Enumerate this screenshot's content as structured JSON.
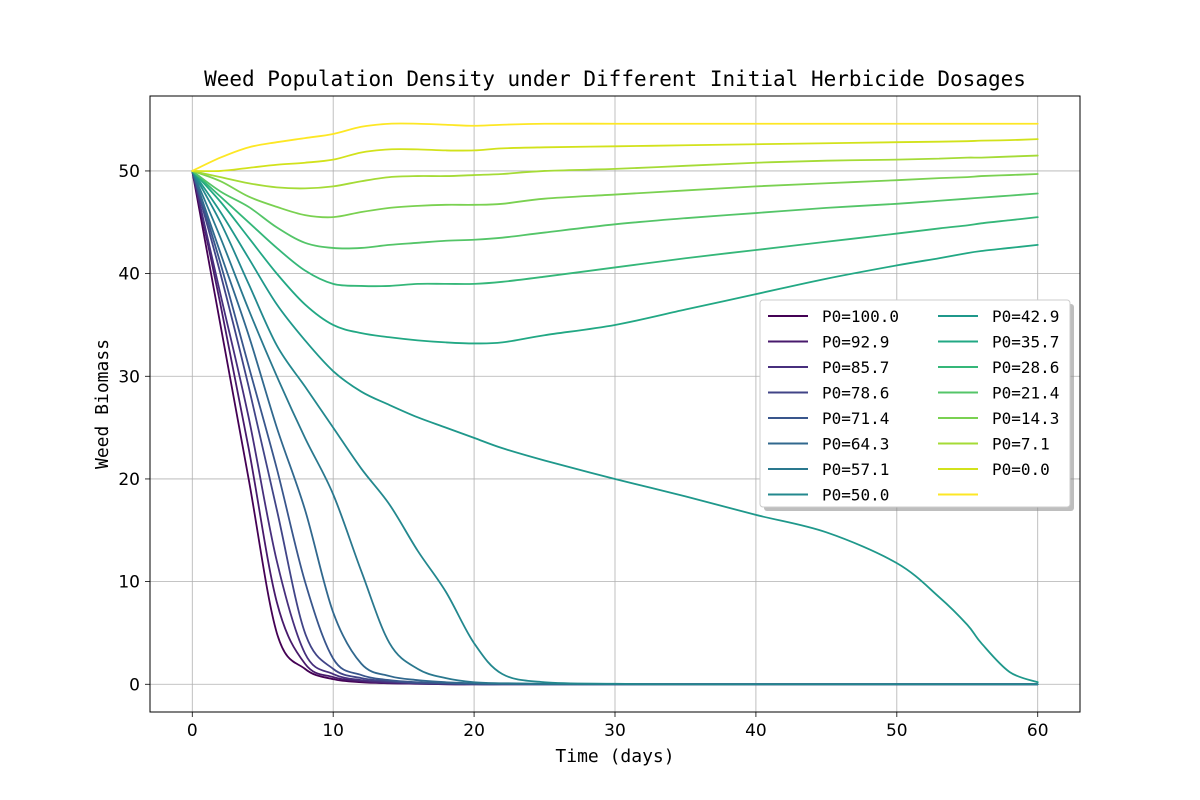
{
  "chart_data": {
    "type": "line",
    "title": "Weed Population Density under Different Initial Herbicide Dosages",
    "xlabel": "Time (days)",
    "ylabel": "Weed Biomass",
    "xlim": [
      -3,
      63
    ],
    "ylim": [
      -2.7,
      57.3
    ],
    "xticks": [
      0,
      10,
      20,
      30,
      40,
      50,
      60
    ],
    "yticks": [
      0,
      10,
      20,
      30,
      40,
      50
    ],
    "grid": true,
    "legend": {
      "placement": "center-right",
      "columns": 2
    },
    "x": [
      0,
      2,
      4,
      6,
      8,
      10,
      12,
      14,
      16,
      18,
      20,
      22,
      25,
      30,
      35,
      40,
      45,
      50,
      53,
      55,
      56,
      58,
      60
    ],
    "series": [
      {
        "name": "P0=100.0",
        "color": "#440154",
        "values": [
          50,
          35,
          20,
          5,
          1.5,
          0.5,
          0.2,
          0.1,
          0.05,
          0,
          0,
          0,
          0,
          0,
          0,
          0,
          0,
          0,
          0,
          0,
          0,
          0,
          0
        ]
      },
      {
        "name": "P0=92.9",
        "color": "#481a6c",
        "values": [
          50,
          37,
          23,
          8,
          2,
          0.7,
          0.3,
          0.1,
          0.05,
          0,
          0,
          0,
          0,
          0,
          0,
          0,
          0,
          0,
          0,
          0,
          0,
          0,
          0
        ]
      },
      {
        "name": "P0=85.7",
        "color": "#472f7d",
        "values": [
          50,
          38,
          26,
          12,
          3,
          1,
          0.4,
          0.2,
          0.1,
          0.05,
          0,
          0,
          0,
          0,
          0,
          0,
          0,
          0,
          0,
          0,
          0,
          0,
          0
        ]
      },
      {
        "name": "P0=78.6",
        "color": "#414487",
        "values": [
          50,
          40,
          29,
          17,
          5,
          1.5,
          0.6,
          0.3,
          0.1,
          0.05,
          0,
          0,
          0,
          0,
          0,
          0,
          0,
          0,
          0,
          0,
          0,
          0,
          0
        ]
      },
      {
        "name": "P0=71.4",
        "color": "#39568c",
        "values": [
          50,
          41,
          31,
          21,
          10,
          2.5,
          0.9,
          0.4,
          0.2,
          0.1,
          0.05,
          0,
          0,
          0,
          0,
          0,
          0,
          0,
          0,
          0,
          0,
          0,
          0
        ]
      },
      {
        "name": "P0=64.3",
        "color": "#31688e",
        "values": [
          50,
          42,
          34,
          25,
          17,
          7,
          2,
          0.8,
          0.4,
          0.2,
          0.1,
          0.05,
          0,
          0,
          0,
          0,
          0,
          0,
          0,
          0,
          0,
          0,
          0
        ]
      },
      {
        "name": "P0=57.1",
        "color": "#2a788e",
        "values": [
          50,
          43.5,
          36.5,
          30,
          24,
          18.5,
          11,
          4,
          1.5,
          0.6,
          0.2,
          0.1,
          0.05,
          0,
          0,
          0,
          0,
          0,
          0,
          0,
          0,
          0,
          0
        ]
      },
      {
        "name": "P0=50.0",
        "color": "#23888e",
        "values": [
          50,
          45,
          39,
          33,
          29,
          25,
          21,
          17.5,
          13,
          9,
          4,
          1,
          0.2,
          0.05,
          0,
          0,
          0,
          0,
          0,
          0,
          0,
          0,
          0
        ]
      },
      {
        "name": "P0=42.9",
        "color": "#1f988b",
        "values": [
          50,
          46,
          41.5,
          37,
          33.5,
          30.5,
          28.5,
          27.2,
          26,
          25,
          24,
          23,
          21.8,
          20,
          18.3,
          16.5,
          14.8,
          11.8,
          8.5,
          5.8,
          4,
          1.2,
          0.2
        ]
      },
      {
        "name": "P0=35.7",
        "color": "#22a884",
        "values": [
          50,
          47,
          43.5,
          40,
          37,
          35,
          34.2,
          33.8,
          33.5,
          33.3,
          33.2,
          33.3,
          34,
          35,
          36.5,
          38,
          39.5,
          40.8,
          41.5,
          42,
          42.2,
          42.5,
          42.8
        ]
      },
      {
        "name": "P0=28.6",
        "color": "#35b779",
        "values": [
          50,
          47.5,
          45,
          42.5,
          40.3,
          39,
          38.8,
          38.8,
          39,
          39,
          39,
          39.2,
          39.7,
          40.6,
          41.5,
          42.3,
          43.1,
          43.9,
          44.4,
          44.7,
          44.9,
          45.2,
          45.5
        ]
      },
      {
        "name": "P0=21.4",
        "color": "#54c568",
        "values": [
          50,
          48,
          46.5,
          44.5,
          43,
          42.5,
          42.5,
          42.8,
          43,
          43.2,
          43.3,
          43.5,
          44,
          44.8,
          45.4,
          45.9,
          46.4,
          46.8,
          47.1,
          47.3,
          47.4,
          47.6,
          47.8
        ]
      },
      {
        "name": "P0=14.3",
        "color": "#7ad151",
        "values": [
          50,
          49,
          47.5,
          46.5,
          45.7,
          45.5,
          46,
          46.4,
          46.6,
          46.7,
          46.7,
          46.8,
          47.3,
          47.7,
          48.1,
          48.5,
          48.8,
          49.1,
          49.3,
          49.4,
          49.5,
          49.6,
          49.7
        ]
      },
      {
        "name": "P0=7.1",
        "color": "#a5db36",
        "values": [
          50,
          49.4,
          48.8,
          48.4,
          48.3,
          48.5,
          49,
          49.4,
          49.5,
          49.5,
          49.6,
          49.7,
          50,
          50.2,
          50.5,
          50.8,
          51,
          51.1,
          51.2,
          51.3,
          51.3,
          51.4,
          51.5
        ]
      },
      {
        "name": "P0=0.0",
        "color": "#d2e21b",
        "values": [
          50,
          50,
          50.3,
          50.6,
          50.8,
          51.1,
          51.8,
          52.1,
          52.1,
          52,
          52,
          52.2,
          52.3,
          52.4,
          52.5,
          52.6,
          52.7,
          52.8,
          52.85,
          52.9,
          52.95,
          53,
          53.1
        ]
      },
      {
        "name": "",
        "color": "#fde725",
        "values": [
          50,
          51.3,
          52.3,
          52.8,
          53.2,
          53.6,
          54.3,
          54.6,
          54.6,
          54.5,
          54.4,
          54.5,
          54.6,
          54.6,
          54.6,
          54.6,
          54.6,
          54.6,
          54.6,
          54.6,
          54.6,
          54.6,
          54.6
        ]
      }
    ]
  }
}
